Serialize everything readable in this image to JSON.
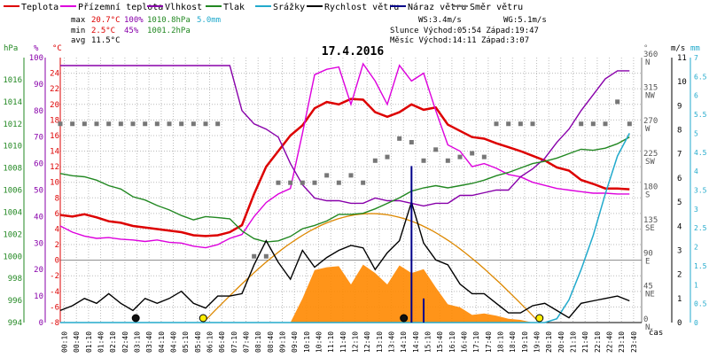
{
  "legend": [
    {
      "label": "Teplota",
      "color": "#dd0000"
    },
    {
      "label": "Přízemní teplota",
      "color": "#dd00dd"
    },
    {
      "label": "Vlhkost",
      "color": "#8800aa"
    },
    {
      "label": "Tlak",
      "color": "#228822"
    },
    {
      "label": "Srážky",
      "color": "#22aacc"
    },
    {
      "label": "Rychlost větru",
      "color": "#000000"
    },
    {
      "label": "Náraz větru",
      "color": "#000088"
    },
    {
      "label": "Směr větru",
      "color": "#777777"
    }
  ],
  "stats": {
    "max_label": "max",
    "max_temp": "20.7°C",
    "max_hum": "100%",
    "max_press": "1010.8hPa",
    "max_rain": "5.0mm",
    "min_label": "min",
    "min_temp": "2.5°C",
    "min_hum": "45%",
    "min_press": "1001.2hPa",
    "avg_label": "avg",
    "avg_temp": "11.5°C"
  },
  "info": {
    "ws": "WS:3.4m/s",
    "wg": "WG:5.1m/s",
    "sun": "Slunce Východ:05:54  Západ:19:47",
    "moon": "Měsíc  Východ:14:11  Západ:3:07"
  },
  "chart_data": {
    "type": "line",
    "title": "17.4.2016",
    "x": [
      "00:00",
      "00:30",
      "01:00",
      "01:30",
      "02:00",
      "02:30",
      "03:00",
      "03:30",
      "04:00",
      "04:30",
      "05:00",
      "05:30",
      "06:00",
      "06:30",
      "07:00",
      "07:30",
      "08:00",
      "08:30",
      "09:00",
      "09:30",
      "10:00",
      "10:30",
      "11:00",
      "11:30",
      "12:00",
      "12:30",
      "13:00",
      "13:30",
      "14:00",
      "14:30",
      "15:00",
      "15:30",
      "16:00",
      "16:30",
      "17:00",
      "17:30",
      "18:00",
      "18:30",
      "19:00",
      "19:30",
      "20:00",
      "20:30",
      "21:00",
      "21:30",
      "22:00",
      "22:30",
      "23:00",
      "23:30"
    ],
    "x_tick_labels": [
      "00:10",
      "00:40",
      "01:10",
      "01:40",
      "02:10",
      "02:40",
      "03:10",
      "03:40",
      "04:10",
      "04:40",
      "05:10",
      "05:40",
      "06:10",
      "06:40",
      "07:10",
      "07:40",
      "08:10",
      "08:40",
      "09:10",
      "09:40",
      "10:10",
      "10:40",
      "11:10",
      "11:40",
      "12:10",
      "12:40",
      "13:10",
      "13:40",
      "14:10",
      "14:40",
      "15:10",
      "15:40",
      "16:10",
      "16:40",
      "17:10",
      "17:40",
      "18:10",
      "18:40",
      "19:10",
      "19:40",
      "20:10",
      "20:40",
      "21:10",
      "21:40",
      "22:10",
      "22:40",
      "23:10",
      "23:40"
    ],
    "x_axis_label": "čas",
    "axes": {
      "pressure": {
        "label": "hPa",
        "ticks": [
          994,
          996,
          998,
          1000,
          1002,
          1004,
          1006,
          1008,
          1010,
          1012,
          1014,
          1016
        ],
        "range": [
          994,
          1018
        ]
      },
      "humidity": {
        "label": "%",
        "ticks": [
          0,
          10,
          20,
          30,
          40,
          50,
          60,
          70,
          80,
          90,
          100
        ],
        "range": [
          0,
          100
        ]
      },
      "temperature": {
        "label": "°C",
        "ticks": [
          -8,
          -6,
          -4,
          -2,
          0,
          2,
          4,
          6,
          8,
          10,
          12,
          14,
          16,
          18,
          20,
          22,
          24
        ],
        "range": [
          -8,
          26
        ]
      },
      "direction": {
        "label": "°",
        "ticks": [
          "0 N",
          "45 NE",
          "90 E",
          "135 SE",
          "180 S",
          "225 SW",
          "270 W",
          "315 NW",
          "360 N"
        ],
        "range": [
          0,
          360
        ]
      },
      "wind": {
        "label": "m/s",
        "ticks": [
          0,
          1,
          2,
          3,
          4,
          5,
          6,
          7,
          8,
          9,
          10,
          11
        ],
        "range": [
          0,
          11
        ]
      },
      "rain": {
        "label": "mm",
        "ticks": [
          0,
          0.5,
          1,
          1.5,
          2,
          2.5,
          3,
          3.5,
          4,
          4.5,
          5,
          5.5,
          6,
          6.5,
          7
        ],
        "range": [
          0,
          7
        ]
      }
    },
    "series": [
      {
        "name": "Teplota",
        "axis": "temperature",
        "color": "#dd0000",
        "values": [
          5.8,
          5.6,
          5.9,
          5.5,
          5.0,
          4.8,
          4.4,
          4.2,
          4.0,
          3.8,
          3.6,
          3.2,
          3.1,
          3.2,
          3.6,
          4.5,
          8.5,
          12.0,
          14.0,
          16.0,
          17.3,
          19.5,
          20.3,
          20.0,
          20.7,
          20.6,
          19.0,
          18.4,
          19.0,
          20.0,
          19.3,
          19.6,
          17.4,
          16.6,
          15.8,
          15.6,
          15.0,
          14.5,
          14.0,
          13.4,
          12.8,
          11.9,
          11.5,
          10.3,
          9.8,
          9.2,
          9.2,
          9.1
        ]
      },
      {
        "name": "Přízemní teplota",
        "axis": "temperature",
        "color": "#dd00dd",
        "values": [
          4.4,
          3.6,
          3.1,
          2.8,
          2.9,
          2.7,
          2.6,
          2.4,
          2.6,
          2.3,
          2.2,
          1.8,
          1.6,
          2.0,
          2.8,
          3.3,
          5.6,
          7.4,
          8.5,
          9.2,
          16.3,
          23.8,
          24.5,
          24.8,
          20.0,
          25.2,
          23.0,
          20.0,
          25.0,
          23.0,
          24.0,
          19.2,
          14.8,
          14.0,
          12.0,
          12.4,
          11.8,
          11.0,
          10.7,
          10.0,
          9.6,
          9.2,
          9.0,
          8.8,
          8.6,
          8.6,
          8.5,
          8.5
        ]
      },
      {
        "name": "Vlhkost",
        "axis": "humidity",
        "color": "#8800aa",
        "values": [
          97,
          97,
          97,
          97,
          97,
          97,
          97,
          97,
          97,
          97,
          97,
          97,
          97,
          97,
          97,
          80,
          75,
          73,
          70,
          60,
          52,
          47,
          46,
          46,
          45,
          45,
          47,
          46,
          46,
          45,
          44,
          45,
          45,
          48,
          48,
          49,
          50,
          50,
          55,
          58,
          62,
          68,
          73,
          80,
          86,
          92,
          95,
          95
        ]
      },
      {
        "name": "Tlak",
        "axis": "pressure",
        "color": "#228822",
        "values": [
          1007.5,
          1007.3,
          1007.2,
          1006.9,
          1006.4,
          1006.1,
          1005.4,
          1005.1,
          1004.6,
          1004.2,
          1003.7,
          1003.3,
          1003.6,
          1003.5,
          1003.4,
          1002.3,
          1001.6,
          1001.3,
          1001.4,
          1001.8,
          1002.5,
          1002.8,
          1003.2,
          1003.8,
          1003.8,
          1003.9,
          1004.3,
          1004.8,
          1005.3,
          1005.9,
          1006.2,
          1006.4,
          1006.2,
          1006.4,
          1006.6,
          1006.9,
          1007.3,
          1007.6,
          1008.0,
          1008.4,
          1008.6,
          1008.9,
          1009.3,
          1009.7,
          1009.6,
          1009.8,
          1010.2,
          1010.8
        ]
      },
      {
        "name": "Srážky",
        "axis": "rain",
        "color": "#22aacc",
        "values": [
          0,
          0,
          0,
          0,
          0,
          0,
          0,
          0,
          0,
          0,
          0,
          0,
          0,
          0,
          0,
          0,
          0,
          0,
          0,
          0,
          0,
          0,
          0,
          0,
          0,
          0,
          0,
          0,
          0,
          0,
          0,
          0,
          0,
          0,
          0,
          0,
          0,
          0,
          0,
          0,
          0,
          0.1,
          0.6,
          1.4,
          2.3,
          3.4,
          4.4,
          5.0
        ]
      },
      {
        "name": "Rychlost větru",
        "axis": "wind",
        "color": "#000000",
        "values": [
          0.5,
          0.7,
          1.0,
          0.8,
          1.2,
          0.8,
          0.5,
          1.0,
          0.8,
          1.0,
          1.3,
          0.8,
          0.6,
          1.1,
          1.1,
          1.2,
          2.4,
          3.4,
          2.5,
          1.8,
          3.0,
          2.3,
          2.7,
          3.0,
          3.2,
          3.1,
          2.2,
          2.9,
          3.4,
          5.0,
          3.3,
          2.6,
          2.4,
          1.6,
          1.2,
          1.2,
          0.8,
          0.4,
          0.4,
          0.7,
          0.8,
          0.5,
          0.2,
          0.8,
          0.9,
          1.0,
          1.1,
          0.9
        ]
      },
      {
        "name": "Náraz větru",
        "axis": "wind",
        "color": "#000088",
        "values": [
          0,
          0,
          0,
          0,
          0,
          0,
          0,
          0,
          0,
          0,
          0,
          0,
          0,
          0,
          0,
          0,
          0,
          0,
          0,
          0,
          0,
          0,
          0,
          0,
          0,
          0,
          0,
          0,
          0,
          6.5,
          1.0,
          0,
          0,
          0,
          0,
          0,
          0,
          0,
          0,
          0,
          0,
          0,
          0,
          0,
          0,
          0,
          0,
          0
        ]
      },
      {
        "name": "Směr větru",
        "axis": "direction",
        "color": "#777777",
        "values": [
          270,
          270,
          270,
          270,
          270,
          270,
          270,
          270,
          270,
          270,
          270,
          270,
          270,
          270,
          null,
          null,
          90,
          90,
          190,
          190,
          190,
          190,
          200,
          190,
          200,
          190,
          220,
          225,
          250,
          245,
          220,
          235,
          220,
          225,
          230,
          225,
          270,
          270,
          270,
          270,
          null,
          null,
          null,
          270,
          270,
          270,
          300,
          270
        ]
      }
    ],
    "sun_markers": [
      {
        "time": "05:54"
      },
      {
        "time": "19:47"
      }
    ],
    "moon_markers": [
      {
        "time": "03:07"
      },
      {
        "time": "14:11"
      }
    ]
  }
}
